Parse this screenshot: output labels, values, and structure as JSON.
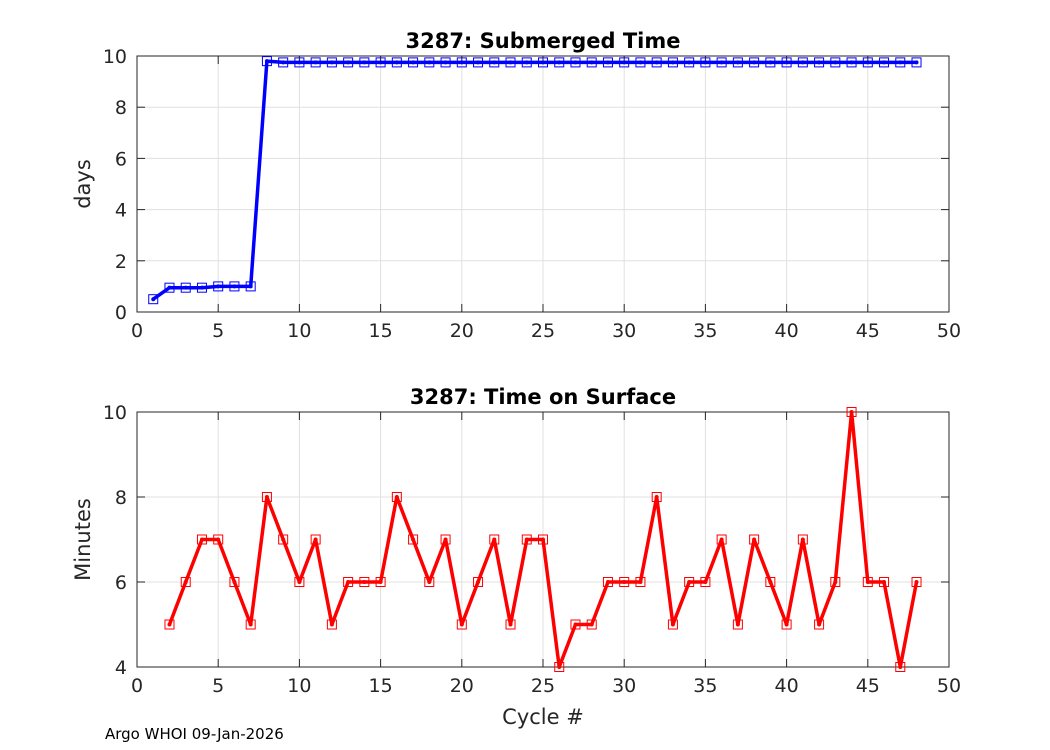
{
  "footer_text": "Argo WHOI 09-Jan-2026",
  "chart_data": [
    {
      "type": "line",
      "title": "3287: Submerged Time",
      "xlabel": "",
      "ylabel": "days",
      "xlim": [
        0,
        50
      ],
      "ylim": [
        0,
        10
      ],
      "xticks": [
        0,
        5,
        10,
        15,
        20,
        25,
        30,
        35,
        40,
        45,
        50
      ],
      "yticks": [
        0,
        2,
        4,
        6,
        8,
        10
      ],
      "grid": true,
      "series": [
        {
          "color": "#0000ff",
          "marker": "square",
          "x": [
            1,
            2,
            3,
            4,
            5,
            6,
            7,
            8,
            9,
            10,
            11,
            12,
            13,
            14,
            15,
            16,
            17,
            18,
            19,
            20,
            21,
            22,
            23,
            24,
            25,
            26,
            27,
            28,
            29,
            30,
            31,
            32,
            33,
            34,
            35,
            36,
            37,
            38,
            39,
            40,
            41,
            42,
            43,
            44,
            45,
            46,
            47,
            48
          ],
          "y": [
            0.5,
            0.95,
            0.95,
            0.95,
            1.0,
            1.0,
            1.0,
            9.8,
            9.75,
            9.75,
            9.75,
            9.75,
            9.75,
            9.75,
            9.75,
            9.75,
            9.75,
            9.75,
            9.75,
            9.75,
            9.75,
            9.75,
            9.75,
            9.75,
            9.75,
            9.75,
            9.75,
            9.75,
            9.75,
            9.75,
            9.75,
            9.75,
            9.75,
            9.75,
            9.75,
            9.75,
            9.75,
            9.75,
            9.75,
            9.75,
            9.75,
            9.75,
            9.75,
            9.75,
            9.75,
            9.75,
            9.75,
            9.75
          ]
        }
      ]
    },
    {
      "type": "line",
      "title": "3287: Time on Surface",
      "xlabel": "Cycle #",
      "ylabel": "Minutes",
      "xlim": [
        0,
        50
      ],
      "ylim": [
        4,
        10
      ],
      "xticks": [
        0,
        5,
        10,
        15,
        20,
        25,
        30,
        35,
        40,
        45,
        50
      ],
      "yticks": [
        4,
        6,
        8,
        10
      ],
      "grid": true,
      "series": [
        {
          "color": "#ff0000",
          "marker": "square",
          "x": [
            2,
            3,
            4,
            5,
            6,
            7,
            8,
            9,
            10,
            11,
            12,
            13,
            14,
            15,
            16,
            17,
            18,
            19,
            20,
            21,
            22,
            23,
            24,
            25,
            26,
            27,
            28,
            29,
            30,
            31,
            32,
            33,
            34,
            35,
            36,
            37,
            38,
            39,
            40,
            41,
            42,
            43,
            44,
            45,
            46,
            47,
            48
          ],
          "y": [
            5,
            6,
            7,
            7,
            6,
            5,
            8,
            7,
            6,
            7,
            5,
            6,
            6,
            6,
            8,
            7,
            6,
            7,
            5,
            6,
            7,
            5,
            7,
            7,
            4,
            5,
            5,
            6,
            6,
            6,
            8,
            5,
            6,
            6,
            7,
            5,
            7,
            6,
            5,
            7,
            5,
            6,
            10,
            6,
            6,
            4,
            6
          ]
        }
      ]
    }
  ]
}
